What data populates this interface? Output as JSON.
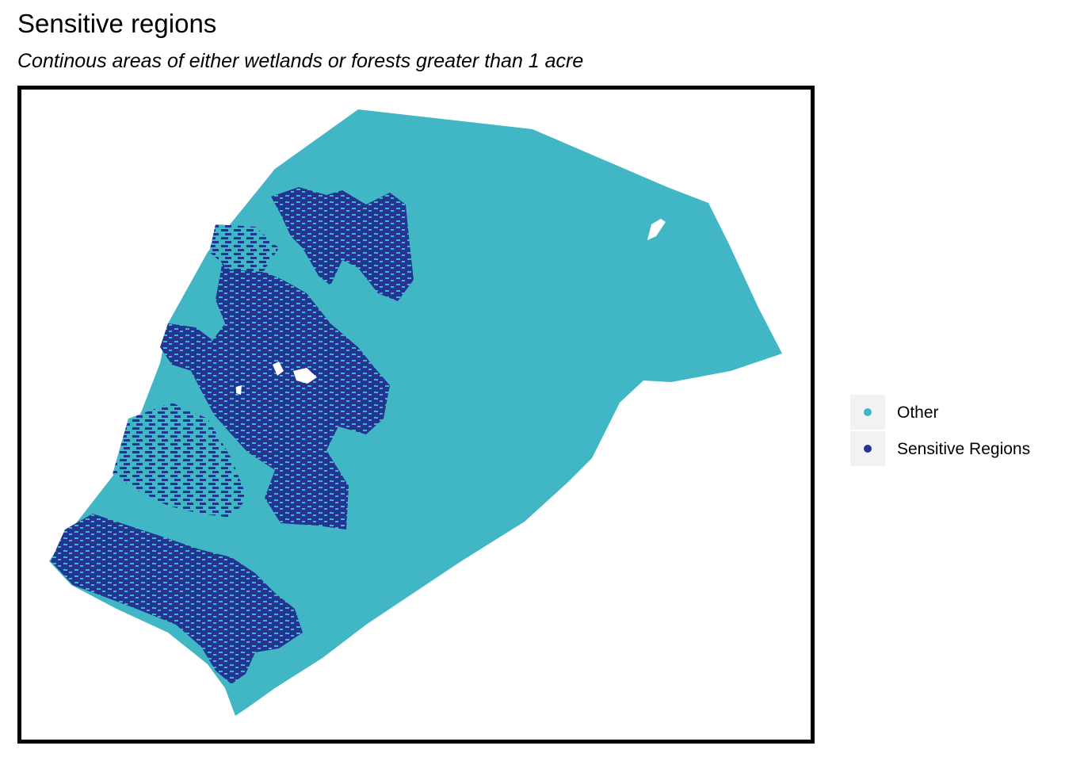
{
  "title": "Sensitive regions",
  "subtitle": "Continous areas of either wetlands or forests greater than 1 acre",
  "legend": {
    "items": [
      {
        "label": "Other",
        "color": "#41b6c4"
      },
      {
        "label": "Sensitive Regions",
        "color": "#253494"
      }
    ]
  },
  "colors": {
    "other": "#41b6c4",
    "sensitive": "#253494",
    "frame": "#000000",
    "legend_key_bg": "#f2f2f2"
  }
}
